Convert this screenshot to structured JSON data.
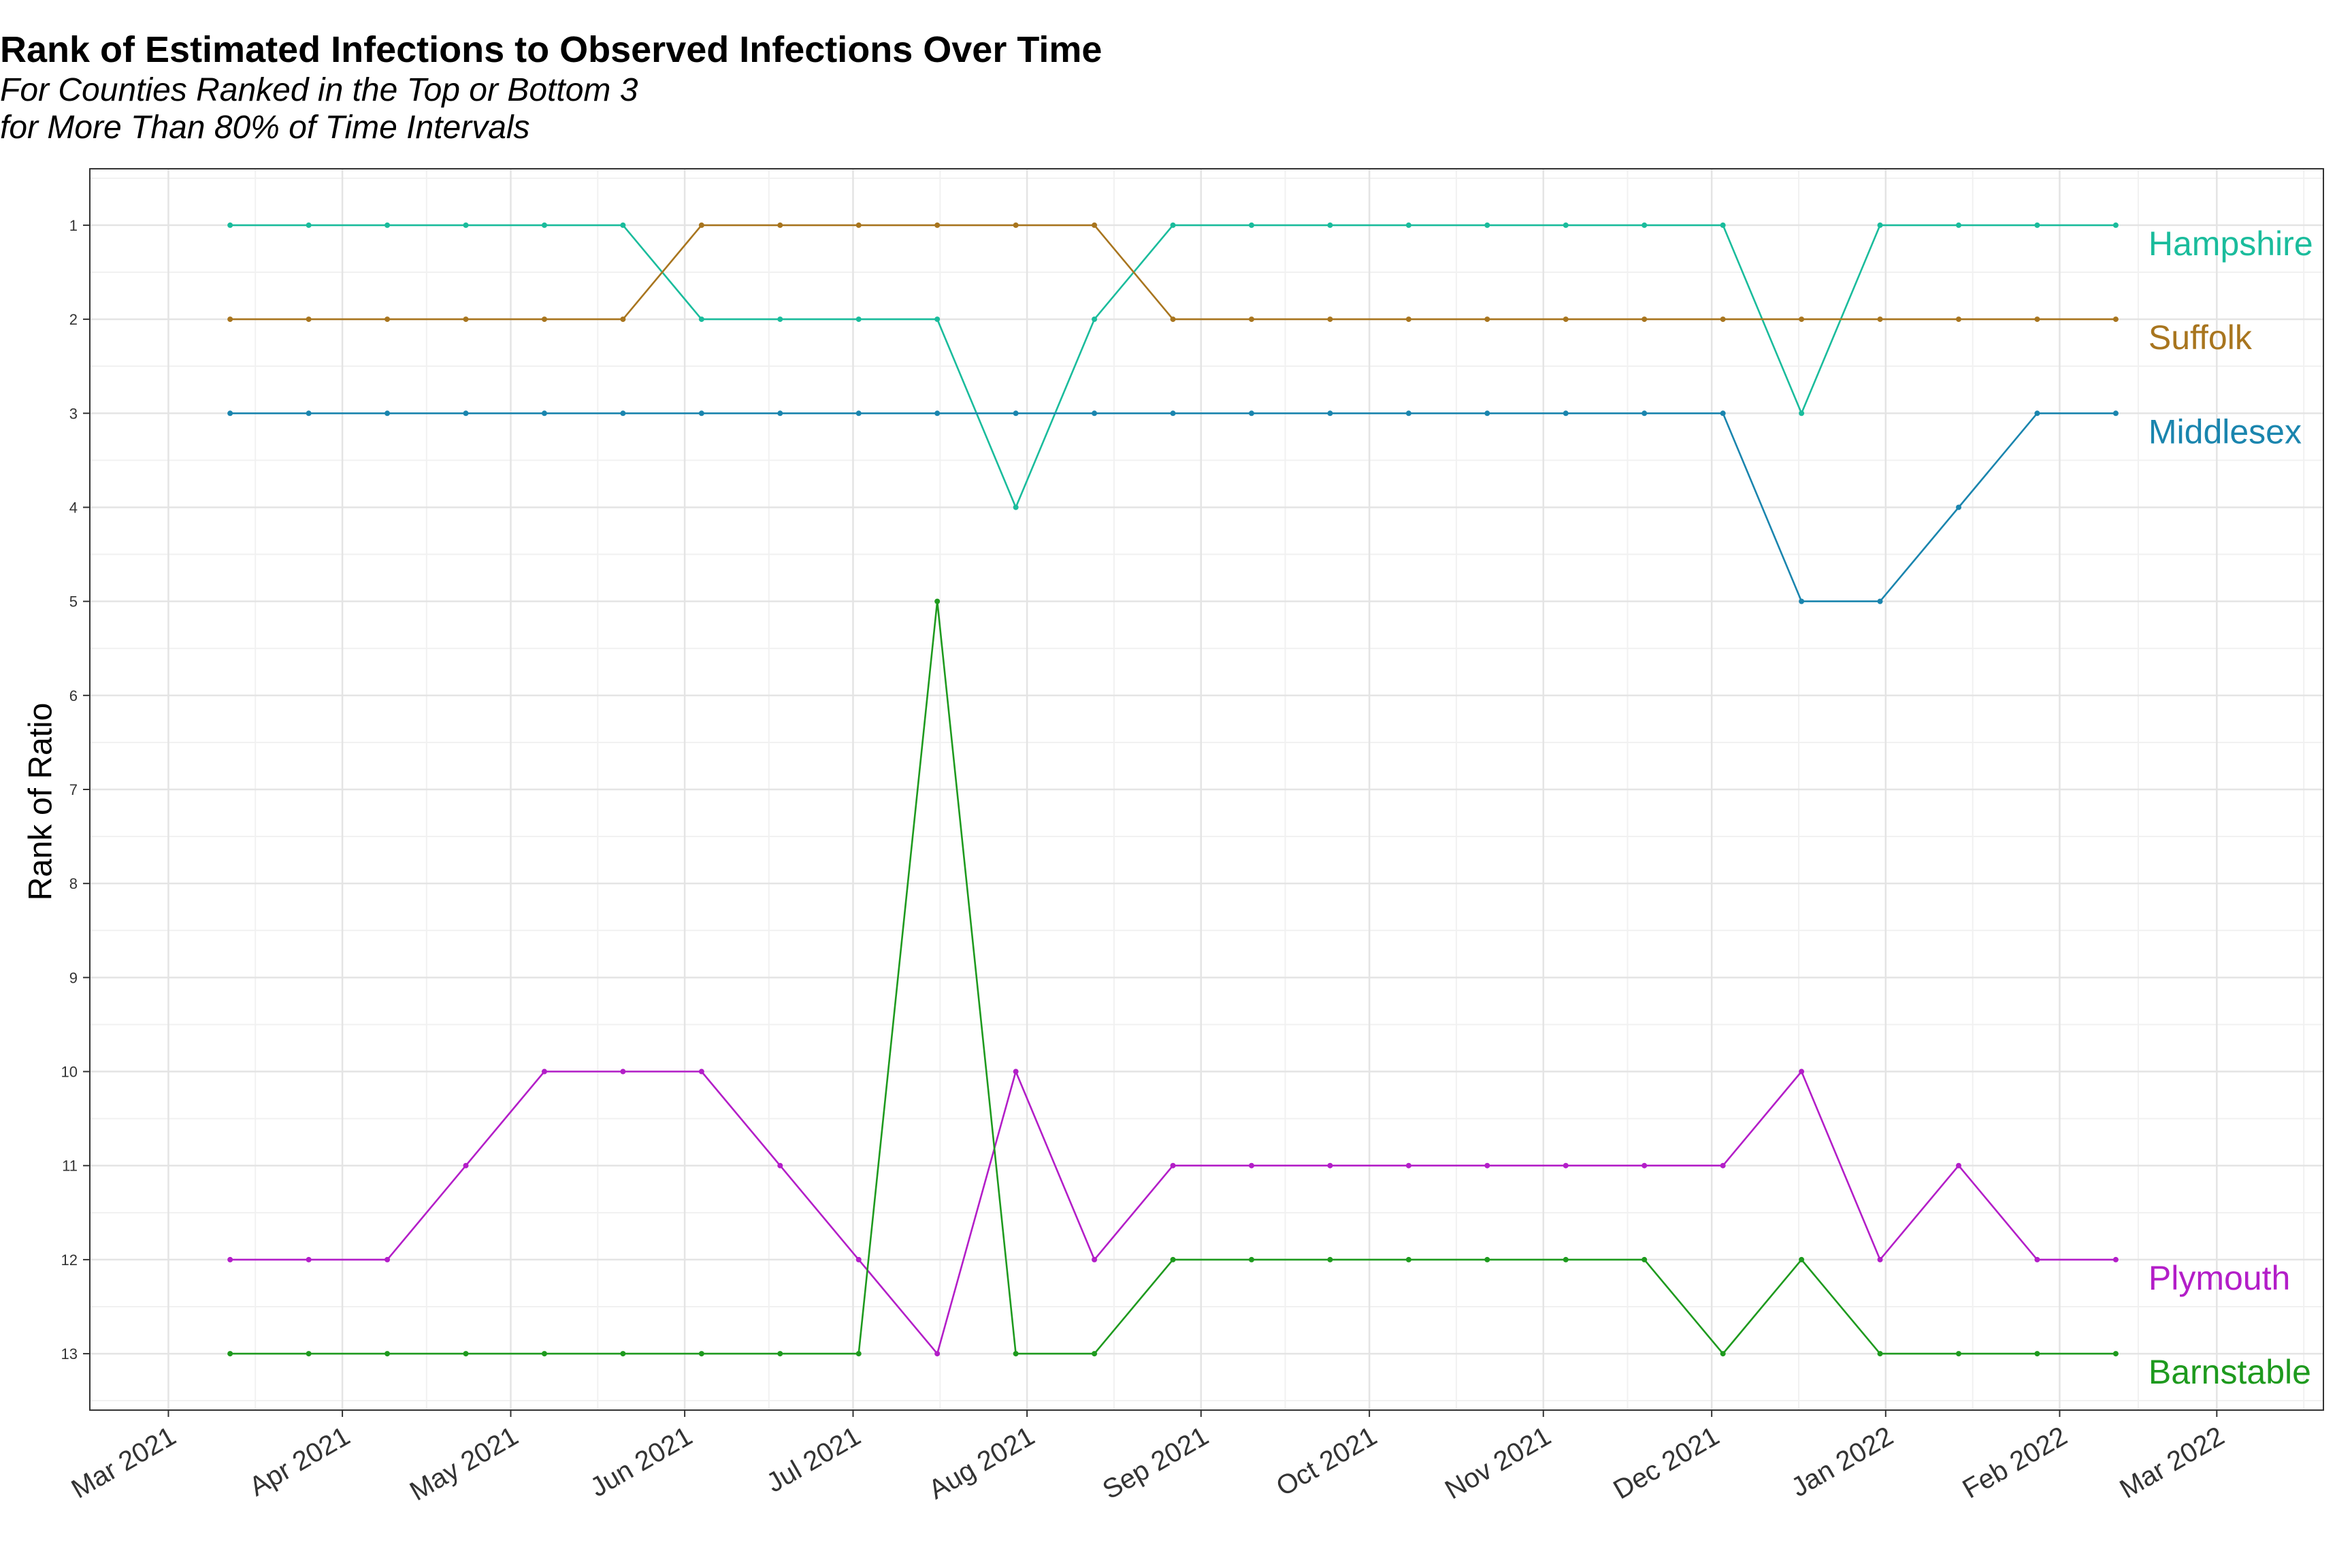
{
  "chart_data": {
    "type": "line",
    "title": "Rank of Estimated Infections to Observed Infections Over Time",
    "subtitle": [
      "For Counties Ranked in the Top or Bottom 3",
      "for More Than 80% of Time Intervals"
    ],
    "xlabel": "",
    "ylabel": "Rank of Ratio",
    "y_reversed": true,
    "ylim": [
      0.4,
      13.6
    ],
    "xlim": [
      "2021-02-15",
      "2022-03-20"
    ],
    "grid": true,
    "legend": "direct labels at right end of lines",
    "x_tick_labels": [
      "Mar 2021",
      "Apr 2021",
      "May 2021",
      "Jun 2021",
      "Jul 2021",
      "Aug 2021",
      "Sep 2021",
      "Oct 2021",
      "Nov 2021",
      "Dec 2021",
      "Jan 2022",
      "Feb 2022",
      "Mar 2022"
    ],
    "x_tick_dates": [
      "2021-03-01",
      "2021-04-01",
      "2021-05-01",
      "2021-06-01",
      "2021-07-01",
      "2021-08-01",
      "2021-09-01",
      "2021-10-01",
      "2021-11-01",
      "2021-12-01",
      "2022-01-01",
      "2022-02-01",
      "2022-03-01"
    ],
    "y_ticks": [
      1,
      2,
      3,
      4,
      5,
      6,
      7,
      8,
      9,
      10,
      11,
      12,
      13
    ],
    "x": [
      "2021-03-12",
      "2021-03-26",
      "2021-04-09",
      "2021-04-23",
      "2021-05-07",
      "2021-05-21",
      "2021-06-04",
      "2021-06-18",
      "2021-07-02",
      "2021-07-16",
      "2021-07-30",
      "2021-08-13",
      "2021-08-27",
      "2021-09-10",
      "2021-09-24",
      "2021-10-08",
      "2021-10-22",
      "2021-11-05",
      "2021-11-19",
      "2021-12-03",
      "2021-12-17",
      "2021-12-31",
      "2022-01-14",
      "2022-01-28",
      "2022-02-11"
    ],
    "series": [
      {
        "name": "Hampshire",
        "color": "#1ABC9C",
        "values": [
          1,
          1,
          1,
          1,
          1,
          1,
          2,
          2,
          2,
          2,
          4,
          2,
          1,
          1,
          1,
          1,
          1,
          1,
          1,
          1,
          3,
          1,
          1,
          1,
          1
        ]
      },
      {
        "name": "Suffolk",
        "color": "#A8751E",
        "values": [
          2,
          2,
          2,
          2,
          2,
          2,
          1,
          1,
          1,
          1,
          1,
          1,
          2,
          2,
          2,
          2,
          2,
          2,
          2,
          2,
          2,
          2,
          2,
          2,
          2
        ]
      },
      {
        "name": "Middlesex",
        "color": "#1A85AE",
        "values": [
          3,
          3,
          3,
          3,
          3,
          3,
          3,
          3,
          3,
          3,
          3,
          3,
          3,
          3,
          3,
          3,
          3,
          3,
          3,
          3,
          5,
          5,
          4,
          3,
          3
        ]
      },
      {
        "name": "Plymouth",
        "color": "#B31EC8",
        "values": [
          12,
          12,
          12,
          11,
          10,
          10,
          10,
          11,
          12,
          13,
          10,
          12,
          11,
          11,
          11,
          11,
          11,
          11,
          11,
          11,
          10,
          12,
          11,
          12,
          12
        ]
      },
      {
        "name": "Barnstable",
        "color": "#1E9A1E",
        "values": [
          13,
          13,
          13,
          13,
          13,
          13,
          13,
          13,
          13,
          5,
          13,
          13,
          12,
          12,
          12,
          12,
          12,
          12,
          12,
          13,
          12,
          13,
          13,
          13,
          13
        ]
      }
    ]
  }
}
